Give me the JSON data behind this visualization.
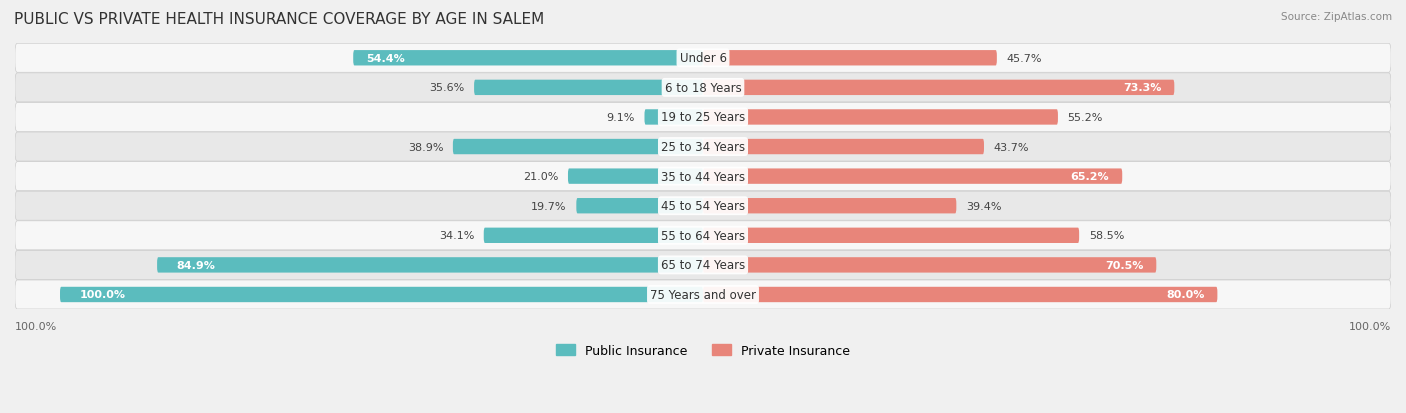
{
  "title": "PUBLIC VS PRIVATE HEALTH INSURANCE COVERAGE BY AGE IN SALEM",
  "source": "Source: ZipAtlas.com",
  "categories": [
    "Under 6",
    "6 to 18 Years",
    "19 to 25 Years",
    "25 to 34 Years",
    "35 to 44 Years",
    "45 to 54 Years",
    "55 to 64 Years",
    "65 to 74 Years",
    "75 Years and over"
  ],
  "public_values": [
    54.4,
    35.6,
    9.1,
    38.9,
    21.0,
    19.7,
    34.1,
    84.9,
    100.0
  ],
  "private_values": [
    45.7,
    73.3,
    55.2,
    43.7,
    65.2,
    39.4,
    58.5,
    70.5,
    80.0
  ],
  "public_color": "#5bbcbe",
  "private_color": "#e8857a",
  "background_color": "#f0f0f0",
  "row_bg_odd": "#f7f7f7",
  "row_bg_even": "#e8e8e8",
  "title_fontsize": 11,
  "label_fontsize": 8.5,
  "value_fontsize": 8.0,
  "bar_height": 0.52,
  "legend_label_public": "Public Insurance",
  "legend_label_private": "Private Insurance"
}
